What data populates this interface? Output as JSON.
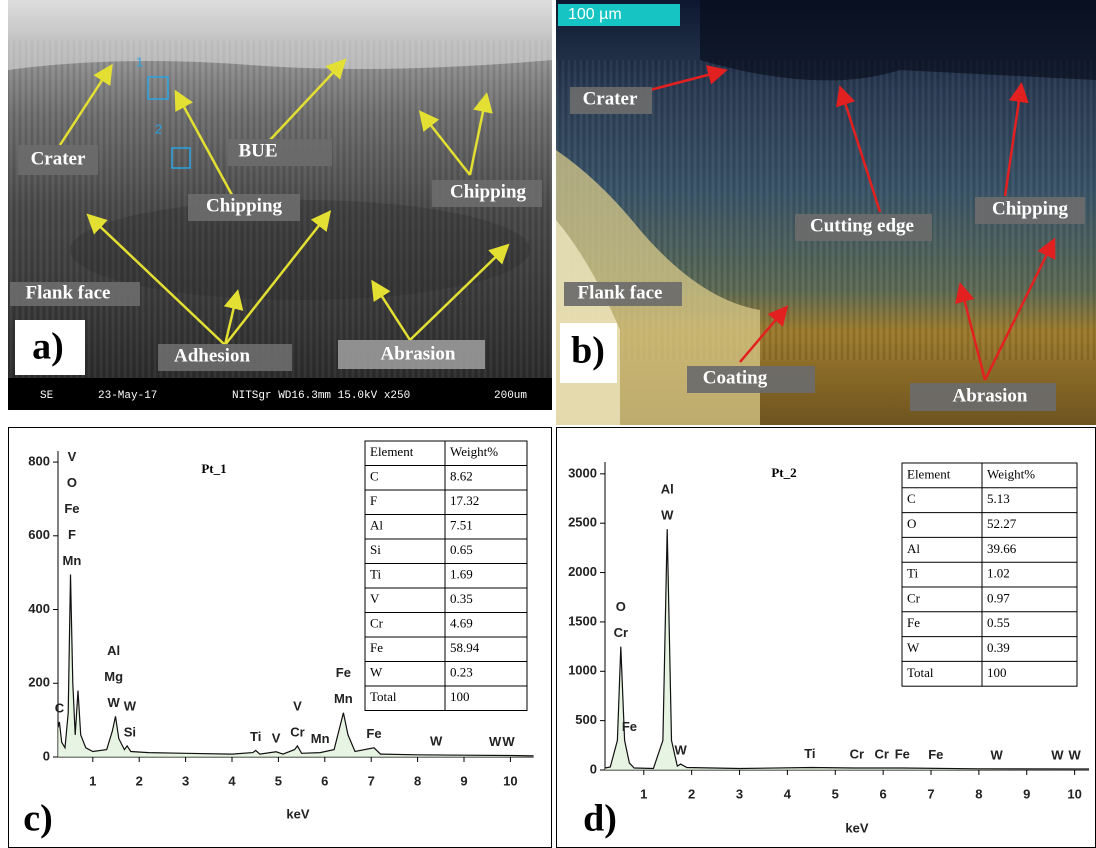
{
  "panels": [
    {
      "label": "a)",
      "annotations": [
        "Crater",
        "BUE",
        "Chipping",
        "Chipping",
        "Flank face",
        "Adhesion",
        "Abrasion"
      ],
      "markers": [
        "1",
        "2"
      ],
      "footer": [
        "SE",
        "23-May-17",
        "NITSgr WD16.3mm 15.0kV x250",
        "200um"
      ]
    },
    {
      "label": "b)",
      "scale_bar": "100 µm",
      "annotations": [
        "Crater",
        "Cutting edge",
        "Chipping",
        "Flank face",
        "Coating",
        "Abrasion"
      ]
    }
  ],
  "chart_data": [
    {
      "type": "line",
      "title": "Pt_1",
      "panel_label": "c)",
      "x_label": "keV",
      "color": "#111111",
      "x": [
        0.25,
        0.28,
        0.33,
        0.4,
        0.47,
        0.52,
        0.57,
        0.62,
        0.68,
        0.74,
        0.85,
        1.0,
        1.3,
        1.42,
        1.49,
        1.56,
        1.68,
        1.74,
        1.82,
        2.2,
        3,
        4,
        4.45,
        4.51,
        4.6,
        4.95,
        5.1,
        5.35,
        5.41,
        5.5,
        5.9,
        6.2,
        6.4,
        6.5,
        6.65,
        7.06,
        7.2,
        8,
        9,
        10,
        10.5
      ],
      "values": [
        80,
        95,
        40,
        25,
        120,
        495,
        200,
        60,
        180,
        60,
        25,
        15,
        20,
        70,
        110,
        50,
        20,
        30,
        15,
        12,
        10,
        8,
        12,
        18,
        8,
        14,
        8,
        20,
        30,
        10,
        12,
        20,
        120,
        60,
        15,
        25,
        8,
        6,
        5,
        4,
        3
      ],
      "xlim": [
        0.25,
        10.5
      ],
      "xticks": [
        1,
        2,
        3,
        4,
        5,
        6,
        7,
        8,
        9,
        10
      ],
      "ylim": [
        0,
        830
      ],
      "yticks": [
        0,
        200,
        400,
        600,
        800
      ],
      "peaks": [
        {
          "x": 0.28,
          "labels": [
            "C"
          ]
        },
        {
          "x": 0.55,
          "labels": [
            "V",
            "O",
            "Fe",
            "F",
            "Mn"
          ]
        },
        {
          "x": 1.45,
          "labels": [
            "Al",
            "Mg",
            "W"
          ]
        },
        {
          "x": 1.8,
          "labels": [
            "W",
            "Si"
          ]
        },
        {
          "x": 4.51,
          "labels": [
            "Ti"
          ]
        },
        {
          "x": 4.95,
          "labels": [
            "V"
          ]
        },
        {
          "x": 5.41,
          "labels": [
            "V",
            "Cr"
          ]
        },
        {
          "x": 5.9,
          "labels": [
            "Mn"
          ]
        },
        {
          "x": 6.4,
          "labels": [
            "Fe",
            "Mn"
          ]
        },
        {
          "x": 7.06,
          "labels": [
            "Fe"
          ]
        },
        {
          "x": 8.4,
          "labels": [
            "W"
          ]
        },
        {
          "x": 9.67,
          "labels": [
            "W"
          ]
        },
        {
          "x": 9.96,
          "labels": [
            "W"
          ]
        }
      ],
      "table": {
        "columns": [
          "Element",
          "Weight%"
        ],
        "rows": [
          [
            "C",
            8.62
          ],
          [
            "F",
            17.32
          ],
          [
            "Al",
            7.51
          ],
          [
            "Si",
            0.65
          ],
          [
            "Ti",
            1.69
          ],
          [
            "V",
            0.35
          ],
          [
            "Cr",
            4.69
          ],
          [
            "Fe",
            58.94
          ],
          [
            "W",
            0.23
          ],
          [
            "Total",
            100
          ]
        ]
      }
    },
    {
      "type": "line",
      "title": "Pt_2",
      "panel_label": "d)",
      "x_label": "keV",
      "color": "#111111",
      "x": [
        0.19,
        0.3,
        0.45,
        0.52,
        0.6,
        0.7,
        0.8,
        1.2,
        1.4,
        1.49,
        1.58,
        1.7,
        1.77,
        1.9,
        3,
        4.5,
        5.4,
        6.4,
        8,
        10,
        10.3
      ],
      "values": [
        20,
        30,
        300,
        1250,
        300,
        70,
        20,
        15,
        300,
        2440,
        300,
        40,
        60,
        25,
        15,
        25,
        20,
        20,
        12,
        10,
        10
      ],
      "xlim": [
        0.19,
        10.3
      ],
      "xticks": [
        1,
        2,
        3,
        4,
        5,
        6,
        7,
        8,
        9,
        10
      ],
      "ylim": [
        0,
        3120
      ],
      "yticks": [
        0,
        500,
        1000,
        1500,
        2000,
        2500,
        3000
      ],
      "peaks": [
        {
          "x": 0.52,
          "labels": [
            "O",
            "Cr"
          ]
        },
        {
          "x": 0.7,
          "labels": [
            "Fe"
          ]
        },
        {
          "x": 1.49,
          "labels": [
            "Al",
            "W"
          ]
        },
        {
          "x": 1.77,
          "labels": [
            "W"
          ]
        },
        {
          "x": 4.47,
          "labels": [
            "Ti"
          ]
        },
        {
          "x": 5.45,
          "labels": [
            "Cr"
          ]
        },
        {
          "x": 5.97,
          "labels": [
            "Cr"
          ]
        },
        {
          "x": 6.4,
          "labels": [
            "Fe"
          ]
        },
        {
          "x": 7.1,
          "labels": [
            "Fe"
          ]
        },
        {
          "x": 8.37,
          "labels": [
            "W"
          ]
        },
        {
          "x": 9.64,
          "labels": [
            "W"
          ]
        },
        {
          "x": 10,
          "labels": [
            "W"
          ]
        }
      ],
      "table": {
        "columns": [
          "Element",
          "Weight%"
        ],
        "rows": [
          [
            "C",
            5.13
          ],
          [
            "O",
            52.27
          ],
          [
            "Al",
            39.66
          ],
          [
            "Ti",
            1.02
          ],
          [
            "Cr",
            0.97
          ],
          [
            "Fe",
            0.55
          ],
          [
            "W",
            0.39
          ],
          [
            "Total",
            100
          ]
        ]
      }
    }
  ]
}
